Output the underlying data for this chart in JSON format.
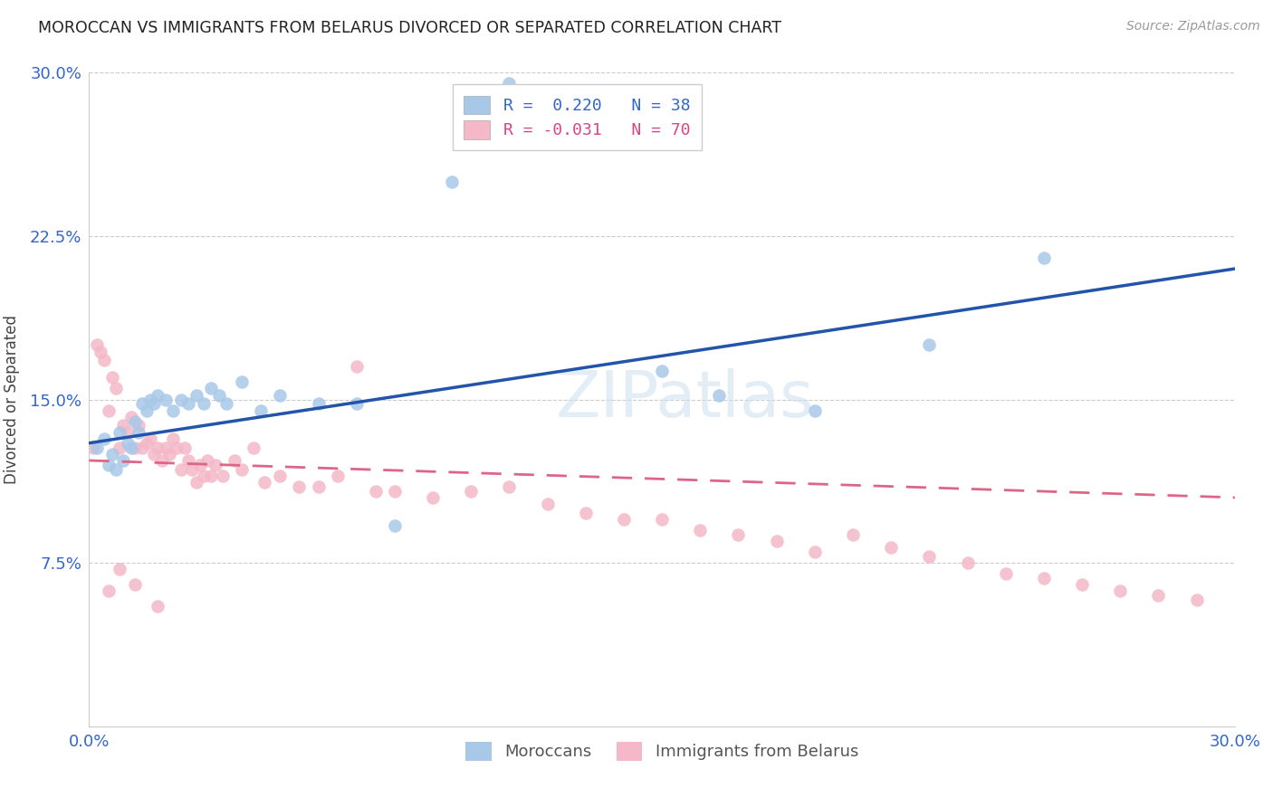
{
  "title": "MOROCCAN VS IMMIGRANTS FROM BELARUS DIVORCED OR SEPARATED CORRELATION CHART",
  "source": "Source: ZipAtlas.com",
  "ylabel": "Divorced or Separated",
  "xlim": [
    0.0,
    0.3
  ],
  "ylim": [
    0.0,
    0.3
  ],
  "xticks": [
    0.0,
    0.05,
    0.1,
    0.15,
    0.2,
    0.25,
    0.3
  ],
  "xticklabels": [
    "0.0%",
    "",
    "",
    "",
    "",
    "",
    "30.0%"
  ],
  "yticks": [
    0.0,
    0.075,
    0.15,
    0.225,
    0.3
  ],
  "yticklabels": [
    "",
    "7.5%",
    "15.0%",
    "22.5%",
    "30.0%"
  ],
  "blue_color": "#a8c8e8",
  "pink_color": "#f4b8c8",
  "line_blue": "#2255aa",
  "line_pink": "#dd6688",
  "watermark": "ZIPatlas",
  "moroccan_x": [
    0.002,
    0.004,
    0.005,
    0.006,
    0.007,
    0.008,
    0.009,
    0.01,
    0.011,
    0.012,
    0.013,
    0.014,
    0.015,
    0.016,
    0.017,
    0.018,
    0.02,
    0.022,
    0.024,
    0.026,
    0.028,
    0.03,
    0.032,
    0.034,
    0.036,
    0.04,
    0.045,
    0.05,
    0.06,
    0.07,
    0.08,
    0.095,
    0.11,
    0.15,
    0.165,
    0.19,
    0.22,
    0.25
  ],
  "moroccan_y": [
    0.128,
    0.132,
    0.12,
    0.125,
    0.118,
    0.135,
    0.122,
    0.13,
    0.128,
    0.14,
    0.135,
    0.148,
    0.145,
    0.15,
    0.148,
    0.152,
    0.15,
    0.145,
    0.15,
    0.148,
    0.152,
    0.148,
    0.155,
    0.152,
    0.148,
    0.158,
    0.145,
    0.152,
    0.148,
    0.148,
    0.092,
    0.25,
    0.295,
    0.163,
    0.152,
    0.145,
    0.175,
    0.215
  ],
  "belarus_x": [
    0.001,
    0.002,
    0.003,
    0.004,
    0.005,
    0.006,
    0.007,
    0.008,
    0.009,
    0.01,
    0.011,
    0.012,
    0.013,
    0.014,
    0.015,
    0.016,
    0.017,
    0.018,
    0.019,
    0.02,
    0.021,
    0.022,
    0.023,
    0.024,
    0.025,
    0.026,
    0.027,
    0.028,
    0.029,
    0.03,
    0.031,
    0.032,
    0.033,
    0.035,
    0.038,
    0.04,
    0.043,
    0.046,
    0.05,
    0.055,
    0.06,
    0.065,
    0.07,
    0.075,
    0.08,
    0.09,
    0.1,
    0.11,
    0.12,
    0.13,
    0.14,
    0.15,
    0.16,
    0.17,
    0.18,
    0.19,
    0.2,
    0.21,
    0.22,
    0.23,
    0.24,
    0.25,
    0.26,
    0.27,
    0.28,
    0.29,
    0.005,
    0.008,
    0.012,
    0.018
  ],
  "belarus_y": [
    0.128,
    0.175,
    0.172,
    0.168,
    0.145,
    0.16,
    0.155,
    0.128,
    0.138,
    0.135,
    0.142,
    0.128,
    0.138,
    0.128,
    0.13,
    0.132,
    0.125,
    0.128,
    0.122,
    0.128,
    0.125,
    0.132,
    0.128,
    0.118,
    0.128,
    0.122,
    0.118,
    0.112,
    0.12,
    0.115,
    0.122,
    0.115,
    0.12,
    0.115,
    0.122,
    0.118,
    0.128,
    0.112,
    0.115,
    0.11,
    0.11,
    0.115,
    0.165,
    0.108,
    0.108,
    0.105,
    0.108,
    0.11,
    0.102,
    0.098,
    0.095,
    0.095,
    0.09,
    0.088,
    0.085,
    0.08,
    0.088,
    0.082,
    0.078,
    0.075,
    0.07,
    0.068,
    0.065,
    0.062,
    0.06,
    0.058,
    0.062,
    0.072,
    0.065,
    0.055
  ]
}
